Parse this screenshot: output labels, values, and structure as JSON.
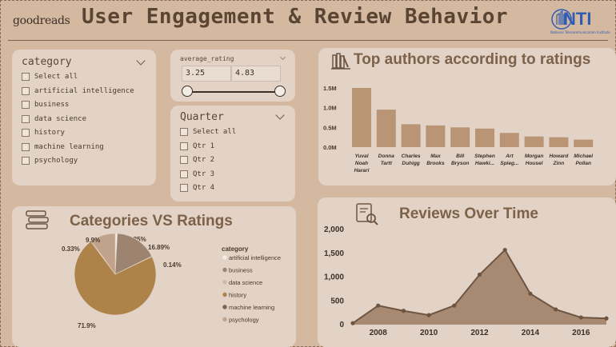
{
  "header": {
    "brand": "goodreads",
    "title": "User Engagement & Review Behavior",
    "org_logo": "NTI",
    "org_sub": "National Telecommunication Institute"
  },
  "category_slicer": {
    "title": "category",
    "items": [
      "Select all",
      "artificial intelligence",
      "business",
      "data science",
      "history",
      "machine learning",
      "psychology"
    ]
  },
  "rating_slicer": {
    "title": "average_rating",
    "min": "3.25",
    "max": "4.83"
  },
  "quarter_slicer": {
    "title": "Quarter",
    "items": [
      "Select all",
      "Qtr 1",
      "Qtr 2",
      "Qtr 3",
      "Qtr 4"
    ]
  },
  "chart_data": [
    {
      "type": "bar",
      "title": "Top authors according to ratings",
      "categories": [
        "Yuval Noah Harari",
        "Donna Tartt",
        "Charles Duhigg",
        "Max Brooks",
        "Bill Bryson",
        "Stephen Hawki...",
        "Art Spieg...",
        "Morgan Housel",
        "Howard Zinn",
        "Michael Pollan"
      ],
      "category_lines": [
        [
          "Yuval",
          "Noah",
          "Harari"
        ],
        [
          "Donna",
          "Tartt"
        ],
        [
          "Charles",
          "Duhigg"
        ],
        [
          "Max",
          "Brooks"
        ],
        [
          "Bill",
          "Bryson"
        ],
        [
          "Stephen",
          "Hawki..."
        ],
        [
          "Art",
          "Spieg..."
        ],
        [
          "Morgan",
          "Housel"
        ],
        [
          "Howard",
          "Zinn"
        ],
        [
          "Michael",
          "Pollan"
        ]
      ],
      "values": [
        1.5,
        0.95,
        0.58,
        0.55,
        0.5,
        0.47,
        0.36,
        0.27,
        0.25,
        0.19
      ],
      "yticks": [
        "0.0M",
        "0.5M",
        "1.0M",
        "1.5M"
      ],
      "ylim": [
        0,
        1.6
      ],
      "color": "#b99576"
    },
    {
      "type": "pie",
      "title": "Categories VS Ratings",
      "legend_title": "category",
      "labels": [
        "artificial intelligence",
        "business",
        "data science",
        "history",
        "machine learning",
        "psychology"
      ],
      "values": [
        0.85,
        16.89,
        0.14,
        71.9,
        0.33,
        9.9
      ],
      "value_labels": [
        "0.85%",
        "16.89%",
        "0.14%",
        "71.9%",
        "0.33%",
        "9.9%"
      ],
      "colors": [
        "#f2ede8",
        "#9c8470",
        "#cfb8a4",
        "#ae8349",
        "#7a6252",
        "#c1a28a"
      ]
    },
    {
      "type": "area",
      "title": "Reviews Over Time",
      "x": [
        2007,
        2008,
        2009,
        2010,
        2011,
        2012,
        2013,
        2014,
        2015,
        2016,
        2017
      ],
      "y": [
        30,
        400,
        290,
        200,
        400,
        1050,
        1570,
        650,
        320,
        150,
        130
      ],
      "xticks": [
        "2008",
        "2010",
        "2012",
        "2014",
        "2016"
      ],
      "yticks": [
        "0",
        "500",
        "1,000",
        "1,500",
        "2,000"
      ],
      "ylim": [
        0,
        2000
      ],
      "color": "#a88a73"
    }
  ],
  "colors": {
    "background": "#d4b8a0",
    "card": "#e2d3c6",
    "accent": "#7d6149"
  }
}
